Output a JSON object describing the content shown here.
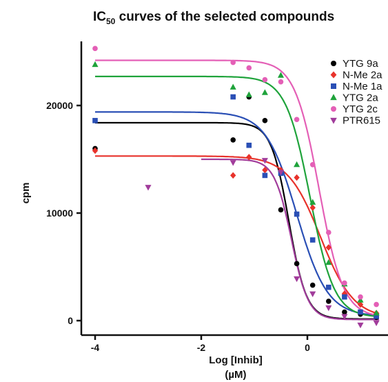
{
  "chart_data": {
    "type": "scatter",
    "title_main": "IC",
    "title_sub": "50",
    "title_rest": " curves of the selected compounds",
    "xlabel_line1": "Log [Inhib]",
    "xlabel_line2": "(µM)",
    "ylabel": "cpm",
    "xlim": [
      -4.15,
      1.35
    ],
    "ylim": [
      -600,
      26500
    ],
    "xticks": [
      -4,
      -2,
      0
    ],
    "xtick_labels": [
      "-4",
      "-2",
      "0"
    ],
    "yticks": [
      0,
      10000,
      20000
    ],
    "ytick_labels": [
      "0",
      "10000",
      "20000"
    ],
    "legend_placement": "top-right",
    "series": [
      {
        "name": "YTG 9a",
        "color": "#000000",
        "marker": "circle",
        "curve": {
          "top": 18400,
          "bottom": 150,
          "logic50": -0.35,
          "hill": 2.6,
          "x_start": -4.0
        },
        "x": [
          -4.0,
          -1.4,
          -1.1,
          -0.8,
          -0.5,
          -0.2,
          0.1,
          0.4,
          0.7,
          1.0,
          1.3
        ],
        "y": [
          16000,
          16800,
          20800,
          18600,
          10300,
          5300,
          3300,
          1800,
          800,
          600,
          300
        ]
      },
      {
        "name": "N-Me 2a",
        "color": "#e8322b",
        "marker": "diamond",
        "curve": {
          "top": 15300,
          "bottom": 200,
          "logic50": 0.25,
          "hill": 1.4,
          "x_start": -4.0
        },
        "x": [
          -4.0,
          -1.4,
          -1.1,
          -0.8,
          -0.5,
          -0.2,
          0.1,
          0.4,
          0.7,
          1.0,
          1.3
        ],
        "y": [
          15800,
          13500,
          15200,
          14000,
          14000,
          13300,
          10500,
          6800,
          2500,
          1500,
          700
        ]
      },
      {
        "name": "N-Me 1a",
        "color": "#2a4fb5",
        "marker": "square",
        "curve": {
          "top": 19400,
          "bottom": 400,
          "logic50": -0.2,
          "hill": 1.5,
          "x_start": -4.0
        },
        "x": [
          -4.0,
          -1.4,
          -1.1,
          -0.8,
          -0.5,
          -0.2,
          0.1,
          0.4,
          0.7,
          1.0,
          1.3
        ],
        "y": [
          18600,
          20800,
          16300,
          13500,
          13700,
          9900,
          7500,
          3100,
          2200,
          800,
          400
        ]
      },
      {
        "name": "YTG 2a",
        "color": "#1fa33b",
        "marker": "triangle-up",
        "curve": {
          "top": 22700,
          "bottom": 300,
          "logic50": 0.05,
          "hill": 1.9,
          "x_start": -4.0
        },
        "x": [
          -4.0,
          -1.4,
          -1.1,
          -0.8,
          -0.5,
          -0.2,
          0.1,
          0.4,
          0.7,
          1.0,
          1.3
        ],
        "y": [
          23800,
          21700,
          21000,
          21200,
          22800,
          14500,
          11000,
          5400,
          3400,
          1900,
          700
        ]
      },
      {
        "name": "YTG 2c",
        "color": "#e45fb6",
        "marker": "circle",
        "curve": {
          "top": 24200,
          "bottom": 300,
          "logic50": 0.22,
          "hill": 1.9,
          "x_start": -4.0
        },
        "x": [
          -4.0,
          -1.4,
          -1.1,
          -0.8,
          -0.5,
          -0.2,
          0.1,
          0.4,
          0.7,
          1.0,
          1.3
        ],
        "y": [
          25300,
          24000,
          23500,
          22400,
          22200,
          18700,
          14500,
          8200,
          3500,
          2200,
          1500
        ]
      },
      {
        "name": "PTR615",
        "color": "#a13c9b",
        "marker": "triangle-down",
        "curve": {
          "top": 15000,
          "bottom": 100,
          "logic50": -0.3,
          "hill": 2.7,
          "x_start": -2.0
        },
        "x": [
          -3.0,
          -1.4,
          -0.8,
          -0.5,
          -0.2,
          0.1,
          0.4,
          0.7,
          1.0,
          1.3
        ],
        "y": [
          12400,
          14700,
          14900,
          13800,
          3900,
          2500,
          1200,
          400,
          -400,
          -200
        ]
      }
    ]
  }
}
